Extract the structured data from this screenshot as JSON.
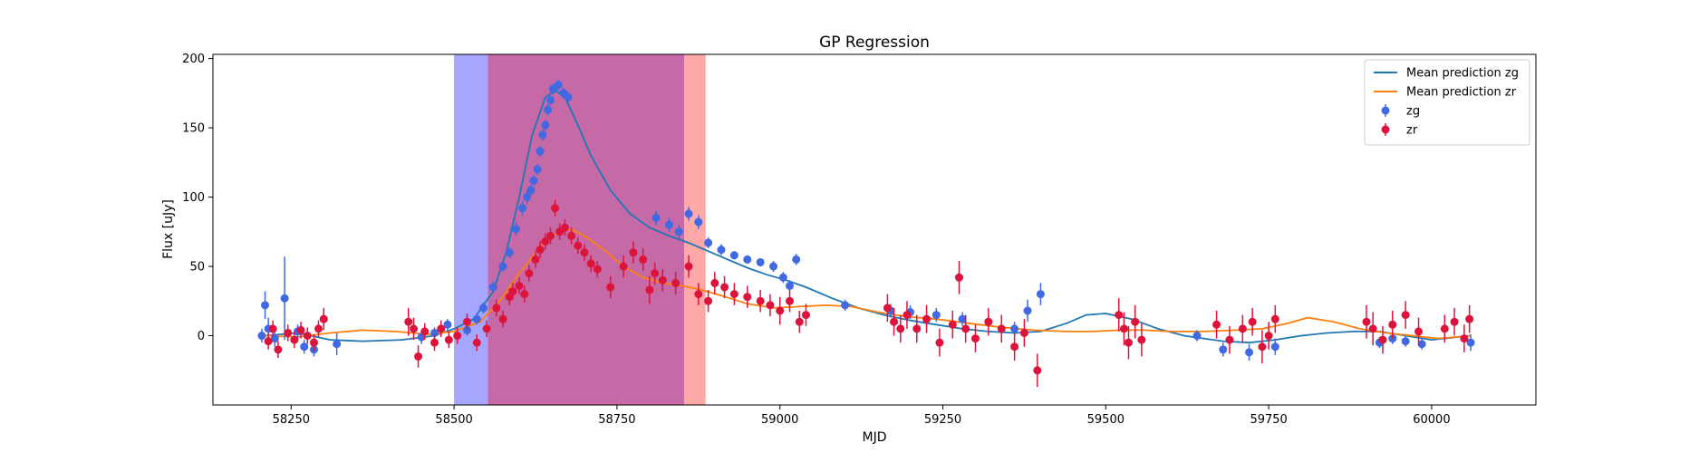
{
  "chart_data": {
    "type": "scatter",
    "title": "GP Regression",
    "xlabel": "MJD",
    "ylabel": "Flux [uJy]",
    "xlim": [
      58130,
      60160
    ],
    "ylim": [
      -50,
      203
    ],
    "xticks": [
      58250,
      58500,
      58750,
      59000,
      59250,
      59500,
      59750,
      60000
    ],
    "yticks": [
      0,
      50,
      100,
      150,
      200
    ],
    "grid": false,
    "legend_position": "top-right",
    "shaded_regions": [
      {
        "x0": 58500,
        "x1": 58552,
        "color": "#a6a6ff"
      },
      {
        "x0": 58552,
        "x1": 58853,
        "color": "#c56aa6"
      },
      {
        "x0": 58853,
        "x1": 58886,
        "color": "#ffa8a8"
      }
    ],
    "series": [
      {
        "name": "Mean prediction zg",
        "kind": "line",
        "color": "#1f77b4",
        "x": [
          58210,
          58260,
          58310,
          58360,
          58420,
          58470,
          58500,
          58530,
          58560,
          58580,
          58600,
          58620,
          58640,
          58655,
          58670,
          58690,
          58710,
          58740,
          58770,
          58800,
          58830,
          58860,
          58890,
          58920,
          58950,
          58980,
          59010,
          59040,
          59080,
          59120,
          59160,
          59200,
          59240,
          59280,
          59320,
          59360,
          59400,
          59440,
          59470,
          59500,
          59540,
          59580,
          59620,
          59650,
          59680,
          59720,
          59760,
          59800,
          59840,
          59880,
          59920,
          59960,
          60000,
          60060
        ],
        "y": [
          0,
          2,
          -3,
          -4,
          -3,
          0,
          5,
          12,
          32,
          60,
          100,
          145,
          172,
          177,
          172,
          152,
          130,
          105,
          88,
          78,
          72,
          67,
          61,
          55,
          49,
          44,
          40,
          35,
          27,
          20,
          15,
          11,
          8,
          5,
          3,
          2,
          3,
          9,
          15,
          16,
          12,
          5,
          0,
          -2,
          -4,
          -5,
          -3,
          0,
          2,
          3,
          3,
          0,
          -3,
          0
        ]
      },
      {
        "name": "Mean prediction zr",
        "kind": "line",
        "color": "#ff7f0e",
        "x": [
          58210,
          58260,
          58310,
          58360,
          58410,
          58460,
          58500,
          58540,
          58570,
          58600,
          58630,
          58660,
          58680,
          58700,
          58730,
          58760,
          58790,
          58820,
          58850,
          58880,
          58910,
          58950,
          58990,
          59030,
          59070,
          59110,
          59150,
          59190,
          59240,
          59290,
          59340,
          59390,
          59440,
          59480,
          59520,
          59560,
          59600,
          59650,
          59700,
          59740,
          59780,
          59810,
          59850,
          59890,
          59930,
          59970,
          60010,
          60060
        ],
        "y": [
          0,
          -1,
          2,
          4,
          3,
          1,
          3,
          10,
          25,
          45,
          63,
          75,
          77,
          72,
          62,
          50,
          42,
          38,
          36,
          33,
          29,
          23,
          20,
          21,
          22,
          21,
          17,
          14,
          12,
          9,
          6,
          4,
          3,
          3,
          4,
          4,
          3,
          3,
          4,
          5,
          9,
          13,
          10,
          5,
          2,
          0,
          -2,
          0
        ]
      },
      {
        "name": "zg",
        "kind": "errorbar",
        "color": "#4169e1",
        "x": [
          58205,
          58210,
          58215,
          58225,
          58240,
          58260,
          58270,
          58285,
          58300,
          58320,
          58450,
          58470,
          58490,
          58520,
          58535,
          58545,
          58560,
          58575,
          58585,
          58595,
          58605,
          58612,
          58618,
          58622,
          58628,
          58632,
          58636,
          58640,
          58644,
          58648,
          58652,
          58660,
          58668,
          58675,
          58810,
          58830,
          58845,
          58860,
          58875,
          58890,
          58910,
          58930,
          58950,
          58970,
          58990,
          59005,
          59015,
          59025,
          59100,
          59170,
          59200,
          59240,
          59280,
          59320,
          59360,
          59380,
          59400,
          59640,
          59680,
          59720,
          59760,
          59920,
          59940,
          59960,
          59985,
          60060
        ],
        "y": [
          0,
          22,
          5,
          -2,
          27,
          3,
          -8,
          -10,
          12,
          -6,
          -1,
          2,
          8,
          4,
          12,
          20,
          35,
          50,
          60,
          77,
          92,
          100,
          105,
          112,
          120,
          133,
          145,
          152,
          163,
          170,
          178,
          181,
          175,
          172,
          85,
          80,
          75,
          88,
          82,
          67,
          62,
          58,
          55,
          53,
          50,
          42,
          36,
          55,
          22,
          18,
          17,
          15,
          12,
          10,
          5,
          18,
          30,
          0,
          -10,
          -12,
          -8,
          -5,
          -2,
          -4,
          -6,
          -5
        ],
        "yerr": [
          5,
          10,
          8,
          6,
          30,
          5,
          5,
          5,
          5,
          8,
          5,
          4,
          4,
          4,
          4,
          4,
          4,
          4,
          4,
          5,
          5,
          5,
          4,
          4,
          4,
          4,
          4,
          4,
          4,
          4,
          4,
          4,
          4,
          4,
          5,
          5,
          5,
          5,
          5,
          4,
          4,
          3,
          3,
          3,
          4,
          4,
          4,
          4,
          4,
          5,
          5,
          5,
          5,
          5,
          5,
          8,
          8,
          4,
          5,
          6,
          6,
          4,
          4,
          4,
          4,
          6
        ]
      },
      {
        "name": "zr",
        "kind": "errorbar",
        "color": "#dc143c",
        "x": [
          58215,
          58222,
          58230,
          58245,
          58255,
          58265,
          58275,
          58285,
          58292,
          58300,
          58430,
          58438,
          58445,
          58455,
          58470,
          58480,
          58492,
          58505,
          58520,
          58535,
          58550,
          58565,
          58575,
          58585,
          58590,
          58600,
          58608,
          58615,
          58625,
          58632,
          58640,
          58648,
          58655,
          58662,
          58670,
          58680,
          58690,
          58700,
          58710,
          58720,
          58740,
          58760,
          58775,
          58790,
          58800,
          58808,
          58820,
          58840,
          58860,
          58875,
          58890,
          58900,
          58915,
          58930,
          58950,
          58970,
          58985,
          59000,
          59015,
          59030,
          59040,
          59165,
          59175,
          59185,
          59195,
          59210,
          59225,
          59245,
          59265,
          59275,
          59285,
          59300,
          59320,
          59340,
          59360,
          59375,
          59395,
          59520,
          59528,
          59535,
          59545,
          59555,
          59670,
          59690,
          59710,
          59725,
          59740,
          59750,
          59760,
          59900,
          59910,
          59925,
          59940,
          59960,
          59980,
          60020,
          60035,
          60050,
          60058
        ],
        "y": [
          -4,
          5,
          -10,
          2,
          -3,
          4,
          0,
          -5,
          5,
          12,
          10,
          5,
          -15,
          3,
          -5,
          5,
          -3,
          0,
          10,
          -5,
          5,
          20,
          12,
          28,
          32,
          36,
          30,
          45,
          55,
          62,
          68,
          72,
          92,
          75,
          78,
          72,
          65,
          60,
          52,
          48,
          35,
          50,
          60,
          55,
          33,
          45,
          40,
          38,
          50,
          30,
          25,
          38,
          35,
          30,
          28,
          25,
          22,
          18,
          25,
          10,
          15,
          20,
          10,
          5,
          15,
          5,
          12,
          -5,
          8,
          42,
          5,
          -2,
          10,
          5,
          -8,
          2,
          -25,
          15,
          5,
          -5,
          10,
          -3,
          8,
          -3,
          5,
          10,
          -8,
          0,
          12,
          10,
          5,
          -3,
          8,
          15,
          3,
          5,
          10,
          -2,
          12
        ],
        "yerr": [
          6,
          6,
          6,
          6,
          6,
          6,
          6,
          6,
          6,
          8,
          10,
          8,
          8,
          6,
          6,
          6,
          6,
          6,
          6,
          6,
          6,
          6,
          6,
          6,
          6,
          6,
          6,
          6,
          6,
          6,
          6,
          6,
          6,
          6,
          6,
          6,
          6,
          6,
          6,
          6,
          8,
          8,
          8,
          8,
          10,
          8,
          8,
          8,
          8,
          8,
          8,
          8,
          8,
          8,
          8,
          8,
          8,
          10,
          8,
          8,
          8,
          10,
          10,
          10,
          10,
          10,
          10,
          10,
          10,
          12,
          10,
          10,
          10,
          10,
          10,
          10,
          12,
          12,
          12,
          12,
          12,
          12,
          10,
          10,
          10,
          10,
          12,
          10,
          10,
          12,
          12,
          10,
          10,
          10,
          10,
          10,
          10,
          10,
          10
        ]
      }
    ]
  }
}
